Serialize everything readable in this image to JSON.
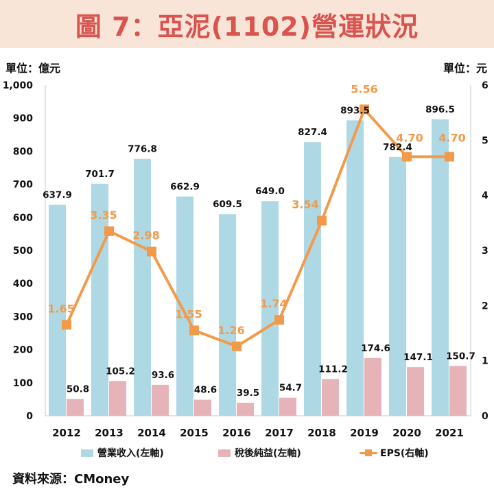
{
  "title": "圖 7：亞泥(1102)營運狀況",
  "left_unit": "單位：億元",
  "right_unit": "單位：元",
  "source": "資料來源：CMoney",
  "colors": {
    "revenue": "#aed9e4",
    "net_income": "#e6b4b8",
    "eps": "#f39a4a",
    "title": "#d9534f",
    "title_bg": "#f9e5d7"
  },
  "chart_data": {
    "type": "bar",
    "categories": [
      "2012",
      "2013",
      "2014",
      "2015",
      "2016",
      "2017",
      "2018",
      "2019",
      "2020",
      "2021"
    ],
    "series": [
      {
        "name": "營業收入(左軸)",
        "axis": "left",
        "kind": "bar",
        "values": [
          637.9,
          701.7,
          776.8,
          662.9,
          609.5,
          649.0,
          827.4,
          893.5,
          782.4,
          896.5
        ],
        "labels": [
          "637.9",
          "701.7",
          "776.8",
          "662.9",
          "609.5",
          "649.0",
          "827.4",
          "893.5",
          "782.4",
          "896.5"
        ]
      },
      {
        "name": "稅後純益(左軸)",
        "axis": "left",
        "kind": "bar",
        "values": [
          50.8,
          105.2,
          93.6,
          48.6,
          39.5,
          54.7,
          111.2,
          174.6,
          147.1,
          150.7
        ],
        "labels": [
          "50.8",
          "105.2",
          "93.6",
          "48.6",
          "39.5",
          "54.7",
          "111.2",
          "174.6",
          "147.1",
          "150.7"
        ]
      },
      {
        "name": "EPS(右軸)",
        "axis": "right",
        "kind": "line",
        "values": [
          1.65,
          3.35,
          2.98,
          1.55,
          1.26,
          1.74,
          3.54,
          5.56,
          4.7,
          4.7
        ],
        "labels": [
          "1.65",
          "3.35",
          "2.98",
          "1.55",
          "1.26",
          "1.74",
          "3.54",
          "5.56",
          "4.70",
          "4.70"
        ]
      }
    ],
    "left_axis": {
      "range": [
        0,
        1000
      ],
      "ticks": [
        "0",
        "100",
        "200",
        "300",
        "400",
        "500",
        "600",
        "700",
        "800",
        "900",
        "1,000"
      ]
    },
    "right_axis": {
      "range": [
        0,
        6
      ],
      "ticks": [
        "0",
        "1",
        "2",
        "3",
        "4",
        "5",
        "6"
      ]
    },
    "legend_position": "bottom"
  }
}
